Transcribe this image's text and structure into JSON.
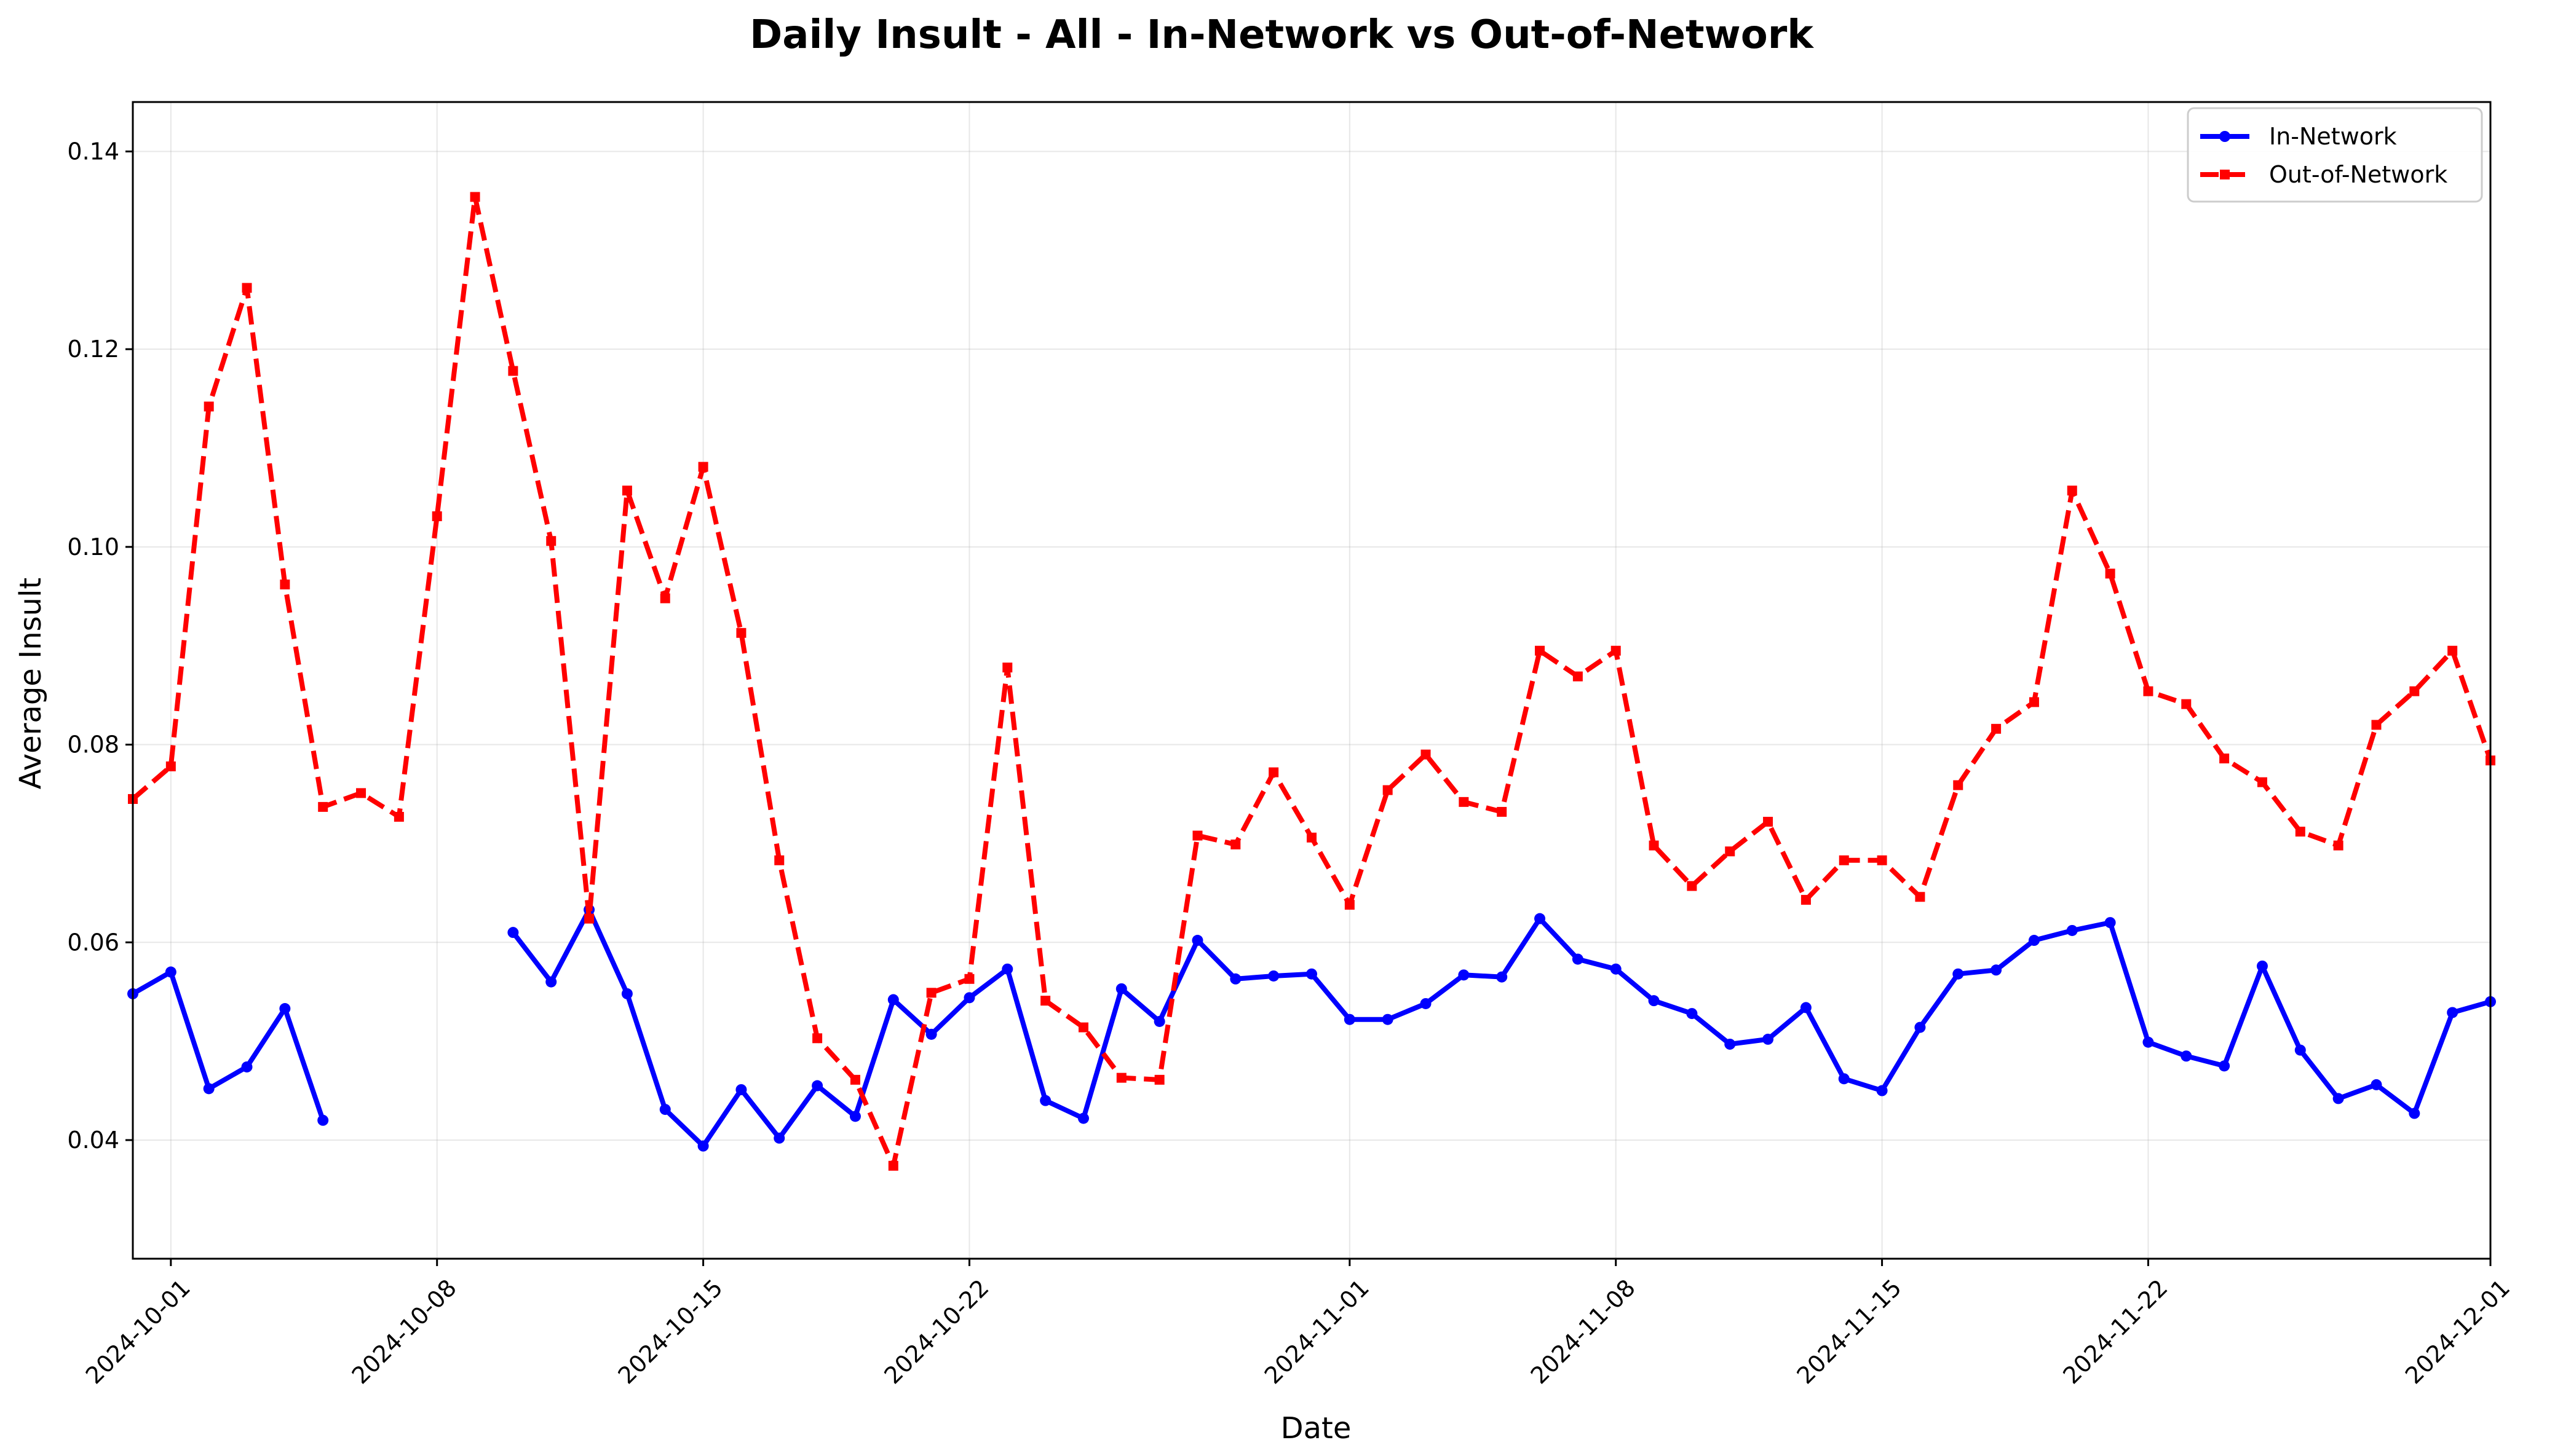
{
  "chart_data": {
    "type": "line",
    "title": "Daily Insult - All - In-Network vs Out-of-Network",
    "xlabel": "Date",
    "ylabel": "Average Insult",
    "xlim": [
      "2024-09-30",
      "2024-12-01"
    ],
    "ylim": [
      0.028,
      0.145
    ],
    "grid": true,
    "legend_position": "top-right",
    "x_ticks": [
      "2024-10-01",
      "2024-10-08",
      "2024-10-15",
      "2024-10-22",
      "2024-11-01",
      "2024-11-08",
      "2024-11-15",
      "2024-11-22",
      "2024-12-01"
    ],
    "y_ticks": [
      "0.04",
      "0.06",
      "0.08",
      "0.10",
      "0.12",
      "0.14"
    ],
    "series": [
      {
        "name": "In-Network",
        "color": "#0000ff",
        "style": "solid",
        "marker": "circle",
        "points": [
          [
            "2024-09-30",
            0.0548
          ],
          [
            "2024-10-01",
            0.057
          ],
          [
            "2024-10-02",
            0.0452
          ],
          [
            "2024-10-03",
            0.0474
          ],
          [
            "2024-10-04",
            0.0533
          ],
          [
            "2024-10-05",
            0.042
          ],
          [
            "2024-10-10",
            0.061
          ],
          [
            "2024-10-11",
            0.056
          ],
          [
            "2024-10-12",
            0.0633
          ],
          [
            "2024-10-13",
            0.0548
          ],
          [
            "2024-10-14",
            0.0431
          ],
          [
            "2024-10-15",
            0.0394
          ],
          [
            "2024-10-16",
            0.0451
          ],
          [
            "2024-10-17",
            0.0402
          ],
          [
            "2024-10-18",
            0.0455
          ],
          [
            "2024-10-19",
            0.0424
          ],
          [
            "2024-10-20",
            0.0542
          ],
          [
            "2024-10-21",
            0.0507
          ],
          [
            "2024-10-22",
            0.0544
          ],
          [
            "2024-10-23",
            0.0573
          ],
          [
            "2024-10-24",
            0.044
          ],
          [
            "2024-10-25",
            0.0422
          ],
          [
            "2024-10-26",
            0.0553
          ],
          [
            "2024-10-27",
            0.052
          ],
          [
            "2024-10-28",
            0.0602
          ],
          [
            "2024-10-29",
            0.0563
          ],
          [
            "2024-10-30",
            0.0566
          ],
          [
            "2024-10-31",
            0.0568
          ],
          [
            "2024-11-01",
            0.0522
          ],
          [
            "2024-11-02",
            0.0522
          ],
          [
            "2024-11-03",
            0.0538
          ],
          [
            "2024-11-04",
            0.0567
          ],
          [
            "2024-11-05",
            0.0565
          ],
          [
            "2024-11-06",
            0.0624
          ],
          [
            "2024-11-07",
            0.0583
          ],
          [
            "2024-11-08",
            0.0573
          ],
          [
            "2024-11-09",
            0.0541
          ],
          [
            "2024-11-10",
            0.0528
          ],
          [
            "2024-11-11",
            0.0497
          ],
          [
            "2024-11-12",
            0.0502
          ],
          [
            "2024-11-13",
            0.0534
          ],
          [
            "2024-11-14",
            0.0462
          ],
          [
            "2024-11-15",
            0.045
          ],
          [
            "2024-11-16",
            0.0514
          ],
          [
            "2024-11-17",
            0.0568
          ],
          [
            "2024-11-18",
            0.0572
          ],
          [
            "2024-11-19",
            0.0602
          ],
          [
            "2024-11-20",
            0.0612
          ],
          [
            "2024-11-21",
            0.062
          ],
          [
            "2024-11-22",
            0.0499
          ],
          [
            "2024-11-23",
            0.0485
          ],
          [
            "2024-11-24",
            0.0475
          ],
          [
            "2024-11-25",
            0.0576
          ],
          [
            "2024-11-26",
            0.0491
          ],
          [
            "2024-11-27",
            0.0442
          ],
          [
            "2024-11-28",
            0.0456
          ],
          [
            "2024-11-29",
            0.0427
          ],
          [
            "2024-11-30",
            0.0529
          ],
          [
            "2024-12-01",
            0.054
          ]
        ]
      },
      {
        "name": "Out-of-Network",
        "color": "#ff0000",
        "style": "dashed",
        "marker": "square",
        "points": [
          [
            "2024-09-30",
            0.0745
          ],
          [
            "2024-10-01",
            0.0778
          ],
          [
            "2024-10-02",
            0.1142
          ],
          [
            "2024-10-03",
            0.1262
          ],
          [
            "2024-10-04",
            0.0962
          ],
          [
            "2024-10-05",
            0.0737
          ],
          [
            "2024-10-06",
            0.0751
          ],
          [
            "2024-10-07",
            0.0727
          ],
          [
            "2024-10-08",
            0.1031
          ],
          [
            "2024-10-09",
            0.1354
          ],
          [
            "2024-10-10",
            0.1178
          ],
          [
            "2024-10-11",
            0.1006
          ],
          [
            "2024-10-12",
            0.0624
          ],
          [
            "2024-10-13",
            0.1057
          ],
          [
            "2024-10-14",
            0.0948
          ],
          [
            "2024-10-15",
            0.1081
          ],
          [
            "2024-10-16",
            0.0913
          ],
          [
            "2024-10-17",
            0.0683
          ],
          [
            "2024-10-18",
            0.0503
          ],
          [
            "2024-10-19",
            0.0461
          ],
          [
            "2024-10-20",
            0.0374
          ],
          [
            "2024-10-21",
            0.0549
          ],
          [
            "2024-10-22",
            0.0563
          ],
          [
            "2024-10-23",
            0.0878
          ],
          [
            "2024-10-24",
            0.0541
          ],
          [
            "2024-10-25",
            0.0514
          ],
          [
            "2024-10-26",
            0.0463
          ],
          [
            "2024-10-27",
            0.0461
          ],
          [
            "2024-10-28",
            0.0708
          ],
          [
            "2024-10-29",
            0.0699
          ],
          [
            "2024-10-30",
            0.0772
          ],
          [
            "2024-10-31",
            0.0706
          ],
          [
            "2024-11-01",
            0.0638
          ],
          [
            "2024-11-02",
            0.0754
          ],
          [
            "2024-11-03",
            0.079
          ],
          [
            "2024-11-04",
            0.0742
          ],
          [
            "2024-11-05",
            0.0732
          ],
          [
            "2024-11-06",
            0.0895
          ],
          [
            "2024-11-07",
            0.0869
          ],
          [
            "2024-11-08",
            0.0895
          ],
          [
            "2024-11-09",
            0.0698
          ],
          [
            "2024-11-10",
            0.0657
          ],
          [
            "2024-11-11",
            0.0692
          ],
          [
            "2024-11-12",
            0.0722
          ],
          [
            "2024-11-13",
            0.0643
          ],
          [
            "2024-11-14",
            0.0683
          ],
          [
            "2024-11-15",
            0.0683
          ],
          [
            "2024-11-16",
            0.0646
          ],
          [
            "2024-11-17",
            0.0759
          ],
          [
            "2024-11-18",
            0.0816
          ],
          [
            "2024-11-19",
            0.0843
          ],
          [
            "2024-11-20",
            0.1057
          ],
          [
            "2024-11-21",
            0.0973
          ],
          [
            "2024-11-22",
            0.0854
          ],
          [
            "2024-11-23",
            0.0841
          ],
          [
            "2024-11-24",
            0.0786
          ],
          [
            "2024-11-25",
            0.0762
          ],
          [
            "2024-11-26",
            0.0712
          ],
          [
            "2024-11-27",
            0.0698
          ],
          [
            "2024-11-28",
            0.082
          ],
          [
            "2024-11-29",
            0.0854
          ],
          [
            "2024-11-30",
            0.0895
          ],
          [
            "2024-12-01",
            0.0784
          ]
        ]
      }
    ]
  }
}
